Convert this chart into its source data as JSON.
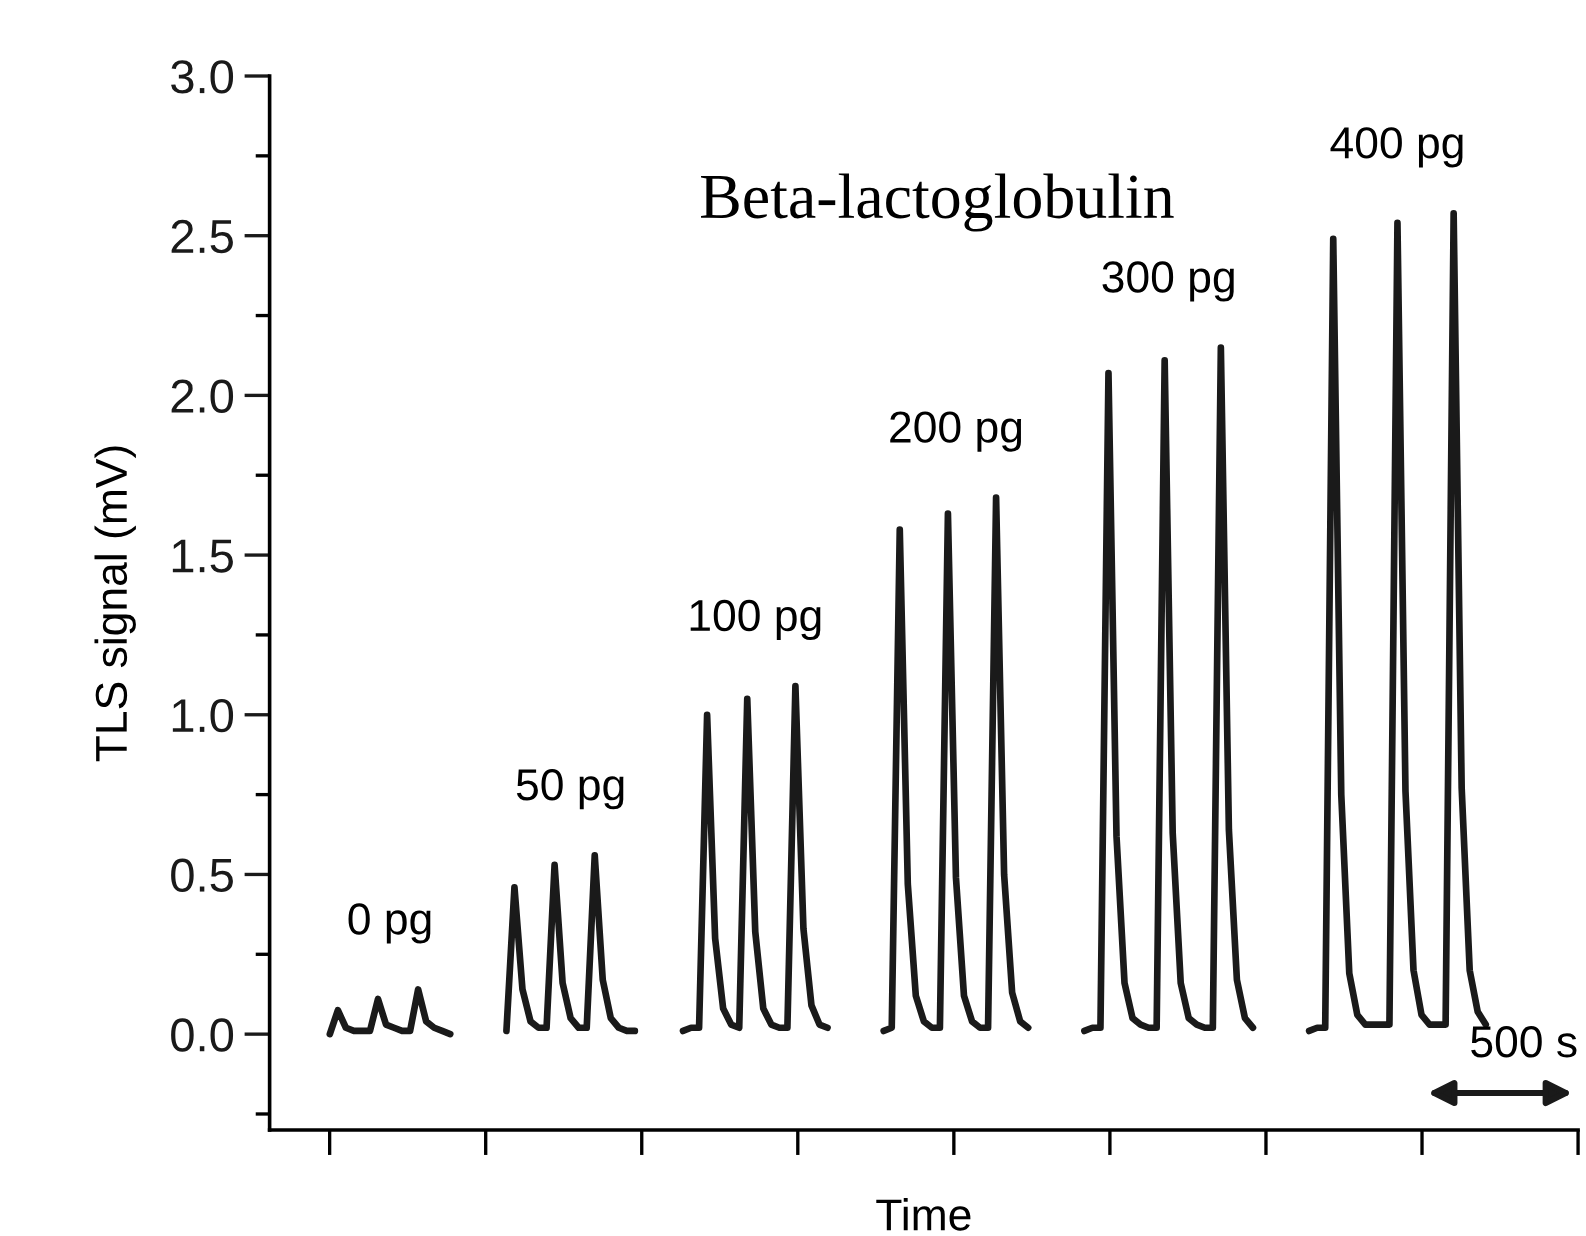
{
  "chart_data": {
    "type": "line",
    "title": "Beta-lactoglobulin",
    "xlabel": "Time",
    "ylabel": "TLS signal (mV)",
    "categories": [
      null,
      null,
      null,
      null,
      null,
      null,
      null,
      null,
      null,
      null,
      null,
      null,
      null,
      null,
      null,
      null,
      null,
      null,
      null,
      null,
      null,
      null,
      null,
      null,
      null,
      null,
      null,
      null,
      null,
      null,
      null,
      null,
      null,
      null,
      null,
      null,
      null,
      null,
      null,
      null,
      null,
      null,
      null,
      null,
      null,
      null,
      null,
      null,
      null,
      null,
      null,
      null,
      null,
      null,
      null,
      null,
      null,
      null,
      null,
      null,
      null,
      null,
      null,
      null,
      null,
      null,
      null,
      null,
      null,
      null,
      null,
      null,
      null,
      null,
      null,
      null,
      null,
      null,
      null,
      null,
      null,
      null,
      null,
      null,
      null,
      null,
      null,
      null,
      null,
      null,
      null,
      null,
      null,
      null,
      null,
      null,
      null,
      null,
      null,
      null,
      null,
      null,
      null,
      null,
      null,
      null,
      null,
      null,
      null,
      null,
      null,
      null,
      null,
      null,
      null,
      null,
      null,
      null,
      null,
      null,
      null,
      null,
      null,
      null,
      null,
      null,
      null,
      null,
      null,
      null,
      null,
      null,
      null,
      null,
      null,
      null,
      null,
      null,
      null,
      null,
      null,
      null,
      null,
      null,
      null,
      null,
      null,
      null,
      null,
      null,
      null,
      null,
      null,
      null,
      null,
      null,
      null,
      null,
      null,
      null,
      null,
      null,
      null
    ],
    "series": [
      {
        "color": "#1a1a1a",
        "values": [
          null,
          null,
          null,
          null,
          null,
          null,
          null,
          0.0,
          0.075,
          0.02,
          0.01,
          0.01,
          0.01,
          0.11,
          0.03,
          0.02,
          0.01,
          0.01,
          0.14,
          0.04,
          0.02,
          0.01,
          0.0,
          null,
          null,
          null,
          null,
          null,
          null,
          0.01,
          0.46,
          0.14,
          0.04,
          0.02,
          0.02,
          0.53,
          0.16,
          0.05,
          0.02,
          0.02,
          0.56,
          0.17,
          0.05,
          0.02,
          0.01,
          0.01,
          null,
          null,
          null,
          null,
          null,
          0.01,
          0.02,
          0.02,
          1.0,
          0.3,
          0.08,
          0.03,
          0.02,
          1.05,
          0.32,
          0.08,
          0.03,
          0.02,
          0.02,
          1.09,
          0.33,
          0.09,
          0.03,
          0.02,
          null,
          null,
          null,
          null,
          null,
          null,
          0.01,
          0.02,
          1.58,
          0.47,
          0.12,
          0.04,
          0.02,
          0.02,
          1.63,
          0.49,
          0.12,
          0.04,
          0.02,
          0.02,
          1.68,
          0.5,
          0.13,
          0.04,
          0.02,
          null,
          null,
          null,
          null,
          null,
          null,
          0.01,
          0.02,
          0.02,
          2.07,
          0.62,
          0.16,
          0.05,
          0.03,
          0.02,
          0.02,
          2.11,
          0.63,
          0.16,
          0.05,
          0.03,
          0.02,
          0.02,
          2.15,
          0.64,
          0.17,
          0.05,
          0.02,
          null,
          null,
          null,
          null,
          null,
          null,
          0.01,
          0.02,
          0.02,
          2.49,
          0.75,
          0.19,
          0.06,
          0.03,
          0.03,
          0.03,
          0.03,
          2.54,
          0.76,
          0.2,
          0.06,
          0.03,
          0.03,
          0.03,
          2.57,
          0.77,
          0.2,
          0.07,
          0.03,
          null,
          null,
          null,
          null,
          null,
          null,
          null,
          null,
          null,
          null,
          null
        ]
      }
    ],
    "ylim": [
      -0.3,
      3.0
    ],
    "yticks": [
      {
        "value": -0.25,
        "label": null
      },
      {
        "value": 0,
        "label": "0.0"
      },
      {
        "value": 0.25,
        "label": null
      },
      {
        "value": 0.5,
        "label": "0.5"
      },
      {
        "value": 0.75,
        "label": null
      },
      {
        "value": 1.0,
        "label": "1.0"
      },
      {
        "value": 1.25,
        "label": null
      },
      {
        "value": 1.5,
        "label": "1.5"
      },
      {
        "value": 1.75,
        "label": null
      },
      {
        "value": 2.0,
        "label": "2.0"
      },
      {
        "value": 2.25,
        "label": null
      },
      {
        "value": 2.5,
        "label": "2.5"
      },
      {
        "value": 2.75,
        "label": null
      },
      {
        "value": 3.0,
        "label": "3.0"
      }
    ],
    "tick_labels": "y",
    "grid": false,
    "legend": false,
    "marker": "none",
    "line_style": "solid",
    "annotations": [
      "0 pg",
      "50 pg",
      "100 pg",
      "200 pg",
      "300 pg",
      "400 pg",
      "500 s"
    ]
  }
}
